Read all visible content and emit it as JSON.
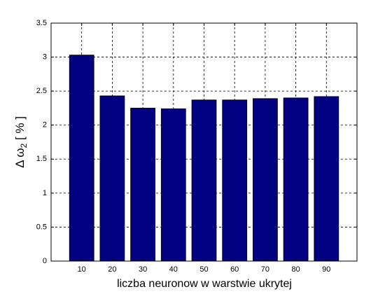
{
  "chart_data": {
    "type": "bar",
    "x": [
      10,
      20,
      30,
      40,
      50,
      60,
      70,
      80,
      90
    ],
    "values": [
      3.03,
      2.43,
      2.25,
      2.24,
      2.37,
      2.37,
      2.39,
      2.4,
      2.42
    ],
    "color": "#000080",
    "xlim": [
      0,
      100
    ],
    "xticks": [
      10,
      20,
      30,
      40,
      50,
      60,
      70,
      80,
      90
    ],
    "ylim": [
      0,
      3.5
    ],
    "yticks": [
      0,
      0.5,
      1,
      1.5,
      2,
      2.5,
      3,
      3.5
    ],
    "grid": true,
    "xlabel": "liczba neuronow w warstwie ukrytej",
    "ylabel": {
      "main": "Δ ω",
      "sub": "2",
      "rest": " [ % ]"
    }
  }
}
